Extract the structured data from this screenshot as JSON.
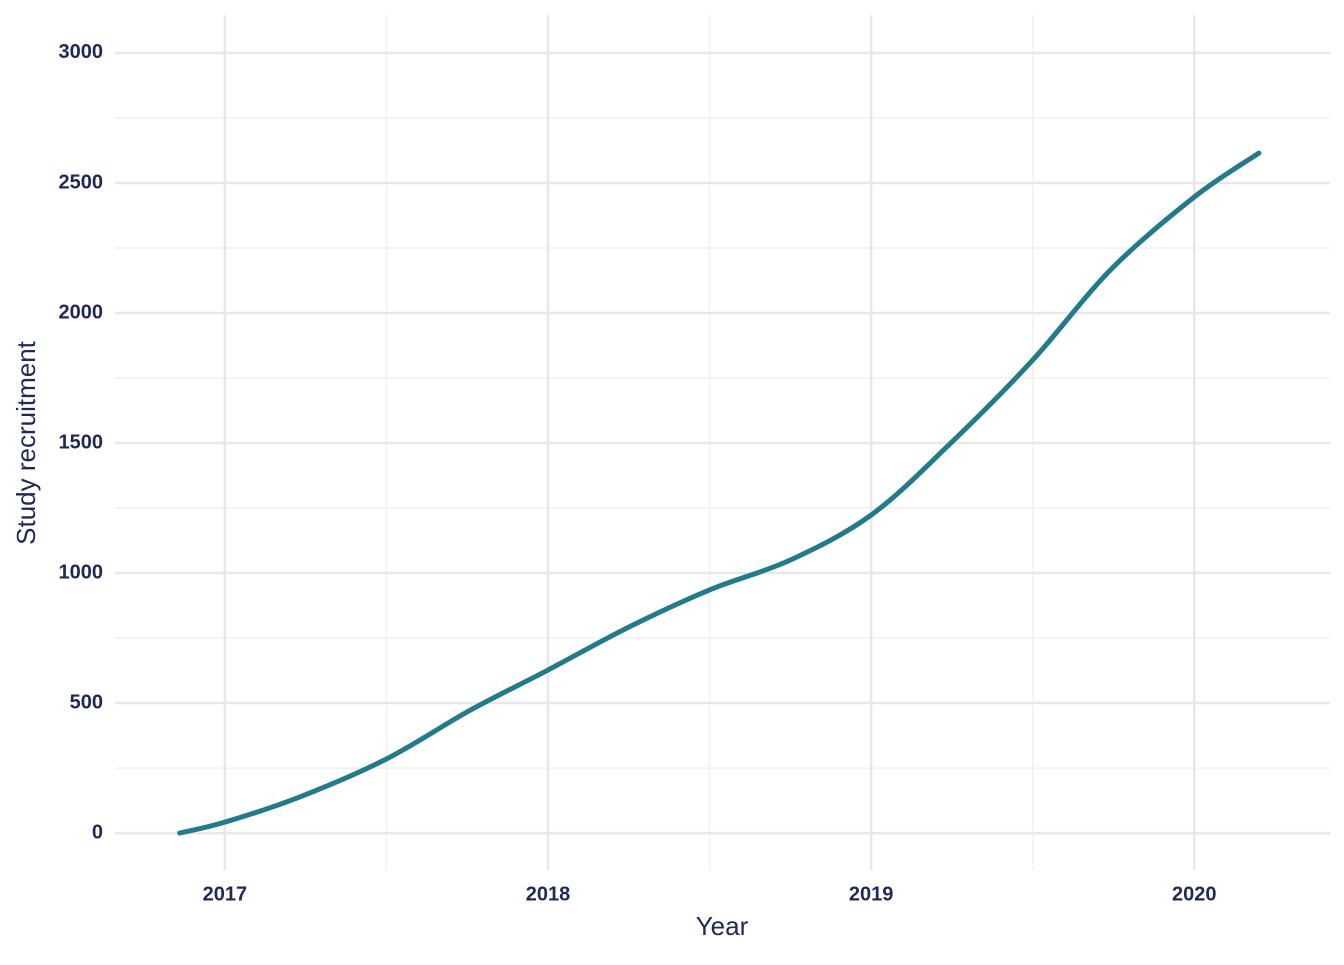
{
  "chart_data": {
    "type": "line",
    "x_label": "Year",
    "y_label": "Study recruitment",
    "x": [
      2016.86,
      2017.0,
      2017.23,
      2017.5,
      2017.76,
      2018.0,
      2018.25,
      2018.5,
      2018.75,
      2019.0,
      2019.24,
      2019.5,
      2019.74,
      2020.0,
      2020.2
    ],
    "series": [
      {
        "color": "#237a8b",
        "values": [
          0,
          42,
          138,
          285,
          473,
          627,
          792,
          935,
          1050,
          1223,
          1492,
          1819,
          2165,
          2446,
          2615
        ]
      }
    ],
    "xlim": [
      2016.66,
      2020.42
    ],
    "xticks": [
      2017,
      2018,
      2019,
      2020
    ],
    "x_minor_ticks": [
      2017.5,
      2018.5,
      2019.5
    ],
    "ylim": [
      -142,
      3146
    ],
    "yticks": [
      0,
      500,
      1000,
      1500,
      2000,
      2500,
      3000
    ],
    "y_minor_ticks": [
      250,
      750,
      1250,
      1750,
      2250,
      2750
    ],
    "grid": true
  }
}
